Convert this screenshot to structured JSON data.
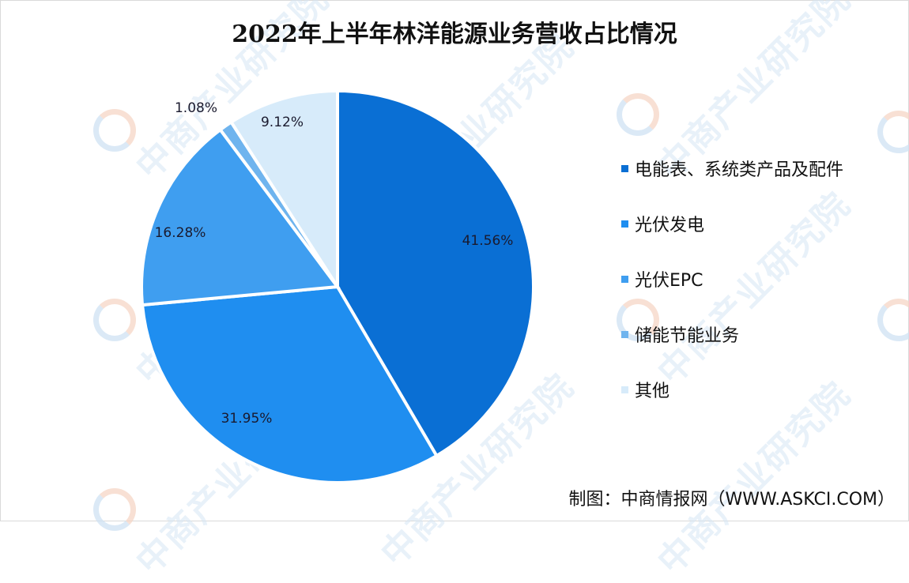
{
  "title": "2022年上半年林洋能源业务营收占比情况",
  "source": "制图：中商情报网（WWW.ASKCI.COM）",
  "watermark_text": "中商产业研究院",
  "chart_data": {
    "type": "pie",
    "title": "2022年上半年林洋能源业务营收占比情况",
    "start_angle": "12 o'clock, clockwise",
    "categories": [
      "电能表、系统类产品及配件",
      "光伏发电",
      "光伏EPC",
      "储能节能业务",
      "其他"
    ],
    "values": [
      41.56,
      31.95,
      16.28,
      1.08,
      9.12
    ],
    "unit": "%",
    "colors": [
      "#0a6fd4",
      "#1f8ef0",
      "#3f9ef0",
      "#6fb4ee",
      "#d7ebfa"
    ],
    "labels": [
      "41.56%",
      "31.95%",
      "16.28%",
      "1.08%",
      "9.12%"
    ],
    "legend_position": "right"
  },
  "legend": [
    {
      "label": "电能表、系统类产品及配件",
      "color": "#0a6fd4"
    },
    {
      "label": "光伏发电",
      "color": "#1f8ef0"
    },
    {
      "label": "光伏EPC",
      "color": "#3f9ef0"
    },
    {
      "label": "储能节能业务",
      "color": "#6fb4ee"
    },
    {
      "label": "其他",
      "color": "#d7ebfa"
    }
  ]
}
